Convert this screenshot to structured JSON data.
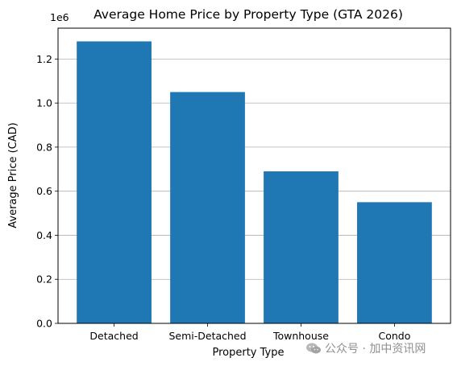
{
  "chart_data": {
    "type": "bar",
    "title": "Average Home Price by Property Type (GTA 2026)",
    "xlabel": "Property Type",
    "ylabel": "Average Price (CAD)",
    "offset_label": "1e6",
    "categories": [
      "Detached",
      "Semi-Detached",
      "Townhouse",
      "Condo"
    ],
    "values": [
      1280000,
      1050000,
      690000,
      550000
    ],
    "ylim": [
      0,
      1340000
    ],
    "yticks": [
      0,
      200000,
      400000,
      600000,
      800000,
      1000000,
      1200000
    ],
    "ytick_labels": [
      "0.0",
      "0.2",
      "0.4",
      "0.6",
      "0.8",
      "1.0",
      "1.2"
    ],
    "grid": "y-axis",
    "bar_color": "#1f77b4"
  },
  "watermark": {
    "text": "公众号 · 加中资讯网",
    "icon": "wechat-icon"
  }
}
